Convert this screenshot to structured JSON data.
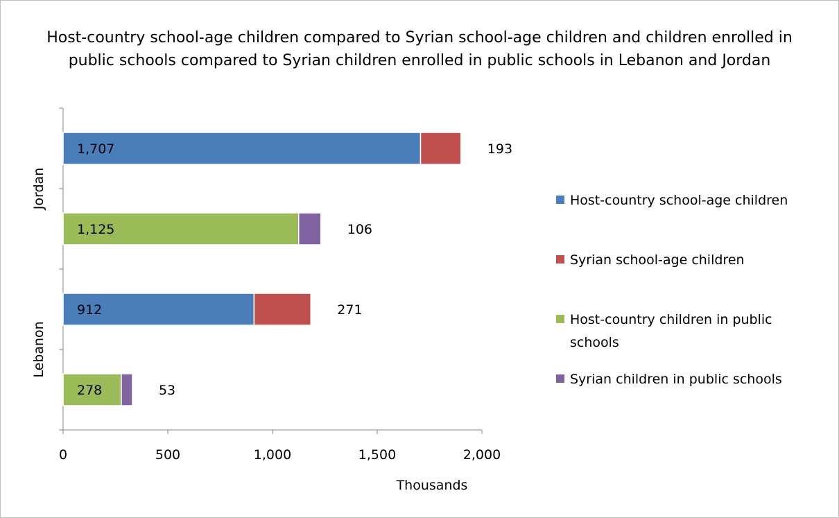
{
  "chart_data": {
    "type": "bar",
    "orientation": "horizontal",
    "stacked": true,
    "title_lines": [
      "Host-country school-age children compared to Syrian school-age children and children enrolled in",
      "public schools compared to Syrian children enrolled in public schools in Lebanon and Jordan"
    ],
    "xlabel": "Thousands",
    "xlim": [
      0,
      2000
    ],
    "xticks": [
      "0",
      "500",
      "1,000",
      "1,500",
      "2,000"
    ],
    "xtick_values": [
      0,
      500,
      1000,
      1500,
      2000
    ],
    "groups": [
      "Jordan",
      "Lebanon"
    ],
    "bars": [
      {
        "group": "Jordan",
        "series": [
          "Host-country school-age children",
          "Syrian school-age children"
        ],
        "values": [
          1707,
          193
        ],
        "labels": [
          "1,707",
          "193"
        ]
      },
      {
        "group": "Jordan",
        "series": [
          "Host-country children in public schools",
          "Syrian children in public schools"
        ],
        "values": [
          1125,
          106
        ],
        "labels": [
          "1,125",
          "106"
        ]
      },
      {
        "group": "Lebanon",
        "series": [
          "Host-country school-age children",
          "Syrian school-age children"
        ],
        "values": [
          912,
          271
        ],
        "labels": [
          "912",
          "271"
        ]
      },
      {
        "group": "Lebanon",
        "series": [
          "Host-country children in public schools",
          "Syrian children in public schools"
        ],
        "values": [
          278,
          53
        ],
        "labels": [
          "278",
          "53"
        ]
      }
    ],
    "legend": {
      "position": "right",
      "entries": [
        {
          "name": "Host-country school-age children",
          "lines": [
            "Host-country school-age children"
          ],
          "color": "#4a7ebb"
        },
        {
          "name": "Syrian school-age children",
          "lines": [
            "Syrian school-age children"
          ],
          "color": "#c0504d"
        },
        {
          "name": "Host-country children in public schools",
          "lines": [
            "Host-country children in public",
            "schools"
          ],
          "color": "#9bbb59"
        },
        {
          "name": "Syrian children in public schools",
          "lines": [
            "Syrian children in public schools"
          ],
          "color": "#8064a2"
        }
      ]
    },
    "colors": {
      "Host-country school-age children": "#4a7ebb",
      "Syrian school-age children": "#c0504d",
      "Host-country children in public schools": "#9bbb59",
      "Syrian children in public schools": "#8064a2"
    },
    "grid": false
  }
}
